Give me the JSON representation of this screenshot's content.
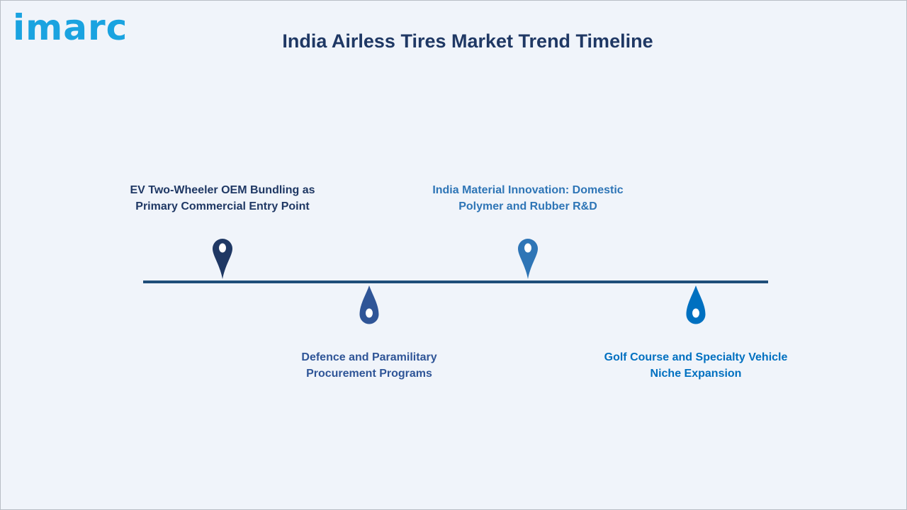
{
  "brand": {
    "logo_text": "imarc",
    "logo_color": "#1aa3e0"
  },
  "title": "India Airless Tires Market Trend Timeline",
  "title_color": "#1f3864",
  "timeline": {
    "line_color": "#1f4e79",
    "milestones": [
      {
        "id": "ev-oem",
        "order": 1,
        "position": "above",
        "lines": [
          "EV Two-Wheeler OEM Bundling as",
          "Primary Commercial Entry Point"
        ],
        "color": "#1f3864",
        "pin_icon": "map-pin-icon"
      },
      {
        "id": "defence",
        "order": 2,
        "position": "below",
        "lines": [
          "Defence and Paramilitary",
          "Procurement Programs"
        ],
        "color": "#2f5597",
        "pin_icon": "drop-pin-icon"
      },
      {
        "id": "material",
        "order": 3,
        "position": "above",
        "lines": [
          "India Material Innovation: Domestic",
          "Polymer and Rubber R&D"
        ],
        "color": "#2e75b6",
        "pin_icon": "map-pin-icon"
      },
      {
        "id": "golf",
        "order": 4,
        "position": "below",
        "lines": [
          "Golf Course and Specialty Vehicle",
          "Niche Expansion"
        ],
        "color": "#0070c0",
        "pin_icon": "drop-pin-icon"
      }
    ]
  }
}
